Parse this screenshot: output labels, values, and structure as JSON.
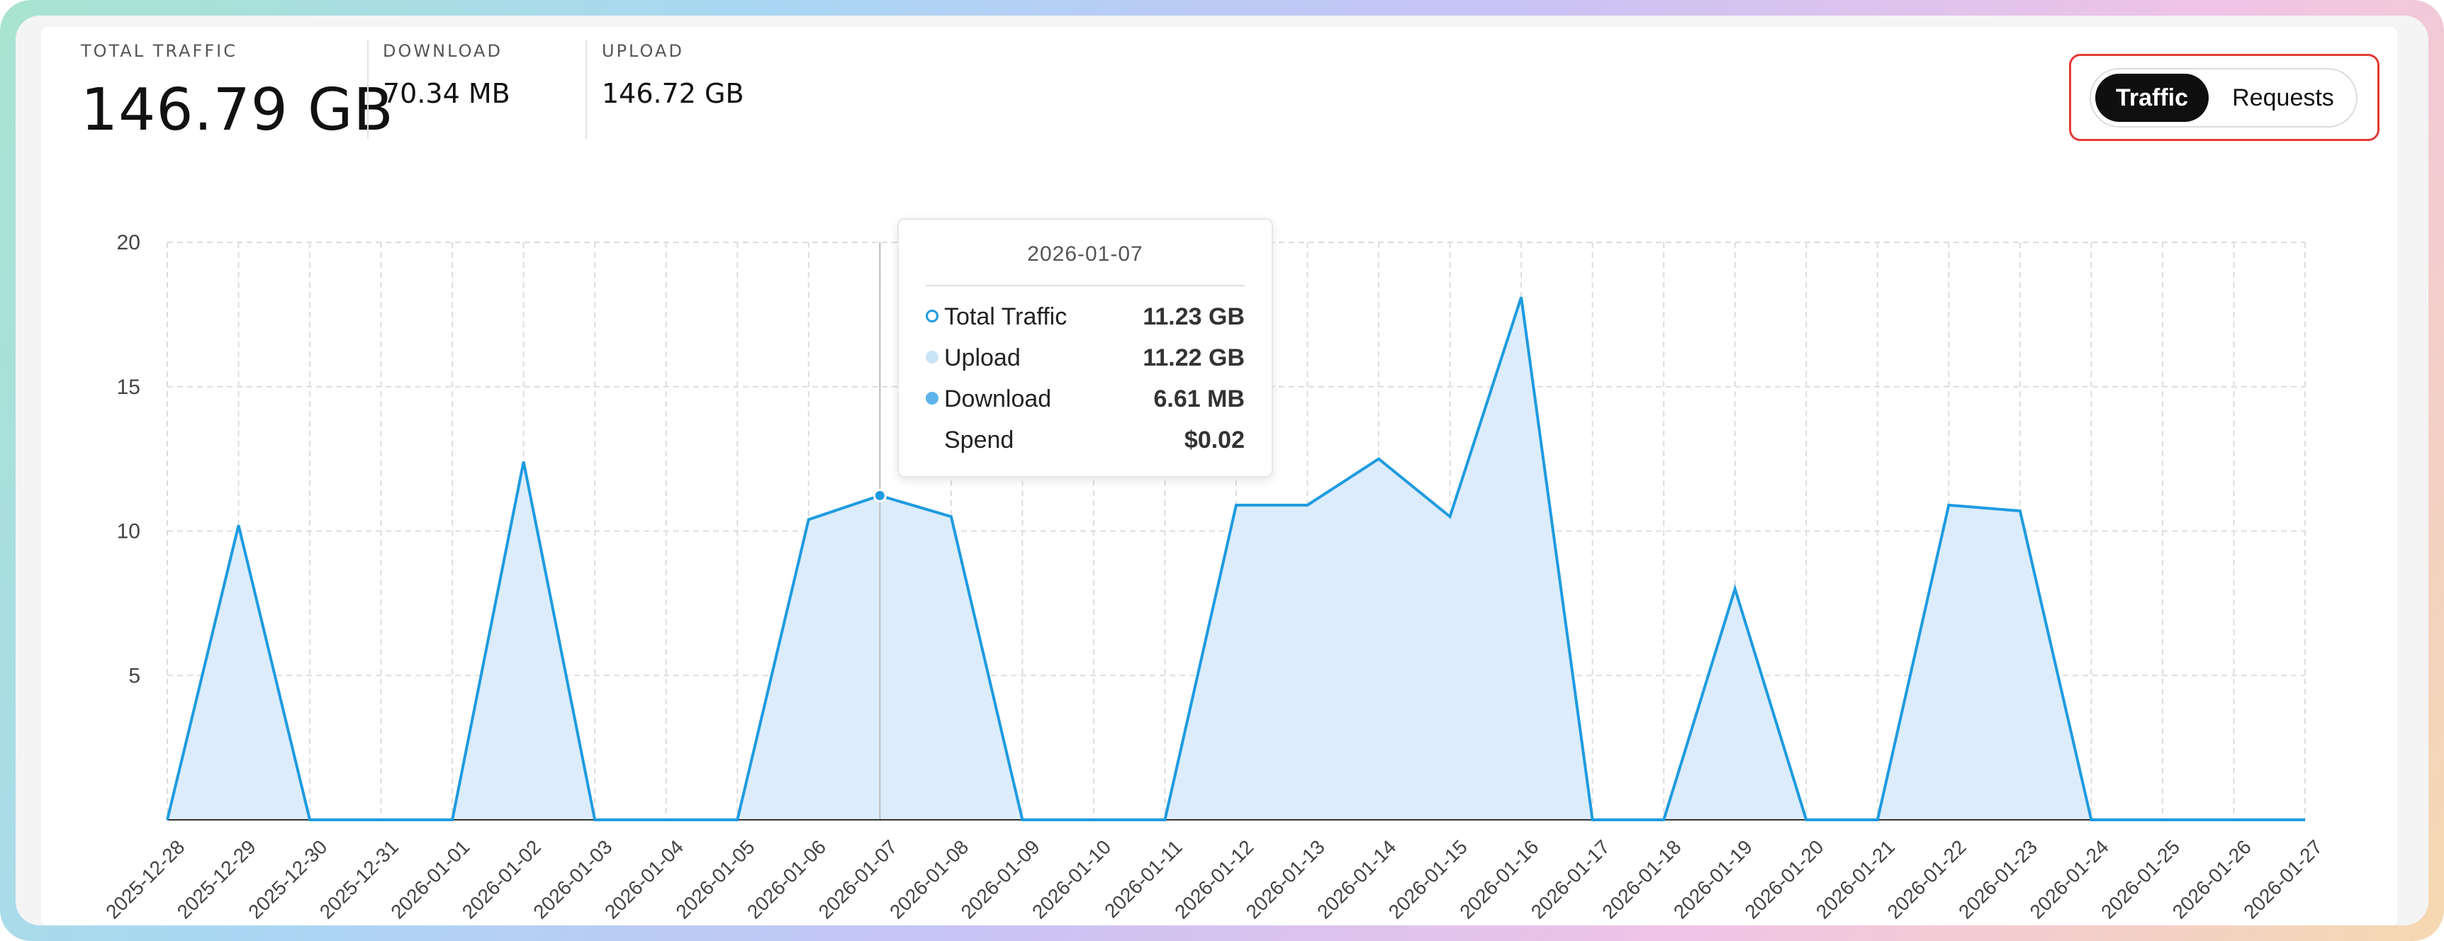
{
  "stats": {
    "total_label": "TOTAL TRAFFIC",
    "total_value": "146.79 GB",
    "download_label": "DOWNLOAD",
    "download_value": "70.34 MB",
    "upload_label": "UPLOAD",
    "upload_value": "146.72 GB"
  },
  "toggle": {
    "traffic_label": "Traffic",
    "requests_label": "Requests",
    "active": "Traffic"
  },
  "tooltip": {
    "date": "2026-01-07",
    "rows": [
      {
        "name": "Total Traffic",
        "value": "11.23 GB"
      },
      {
        "name": "Upload",
        "value": "11.22 GB"
      },
      {
        "name": "Download",
        "value": "6.61 MB"
      },
      {
        "name": "Spend",
        "value": "$0.02"
      }
    ]
  },
  "colors": {
    "line": "#1e9be0",
    "fill": "#dcecfb",
    "upload_dot": "#c9e4f6",
    "download_dot": "#5cb4ea",
    "grid": "#dddddd"
  },
  "chart_data": {
    "type": "area",
    "x": [
      "2025-12-28",
      "2025-12-29",
      "2025-12-30",
      "2025-12-31",
      "2026-01-01",
      "2026-01-02",
      "2026-01-03",
      "2026-01-04",
      "2026-01-05",
      "2026-01-06",
      "2026-01-07",
      "2026-01-08",
      "2026-01-09",
      "2026-01-10",
      "2026-01-11",
      "2026-01-12",
      "2026-01-13",
      "2026-01-14",
      "2026-01-15",
      "2026-01-16",
      "2026-01-17",
      "2026-01-18",
      "2026-01-19",
      "2026-01-20",
      "2026-01-21",
      "2026-01-22",
      "2026-01-23",
      "2026-01-24",
      "2026-01-25",
      "2026-01-26",
      "2026-01-27"
    ],
    "series": [
      {
        "values": [
          0,
          10.2,
          0,
          0,
          0,
          12.4,
          0,
          0,
          0,
          10.4,
          11.23,
          10.5,
          0,
          0,
          0,
          10.9,
          10.9,
          12.5,
          10.5,
          18.1,
          0,
          0,
          8.0,
          0,
          0,
          10.9,
          10.7,
          0,
          0,
          0,
          0
        ]
      }
    ],
    "yticks": [
      5,
      10,
      15,
      20
    ],
    "ylim": [
      0,
      20
    ],
    "grid": true,
    "highlight_index": 10
  }
}
